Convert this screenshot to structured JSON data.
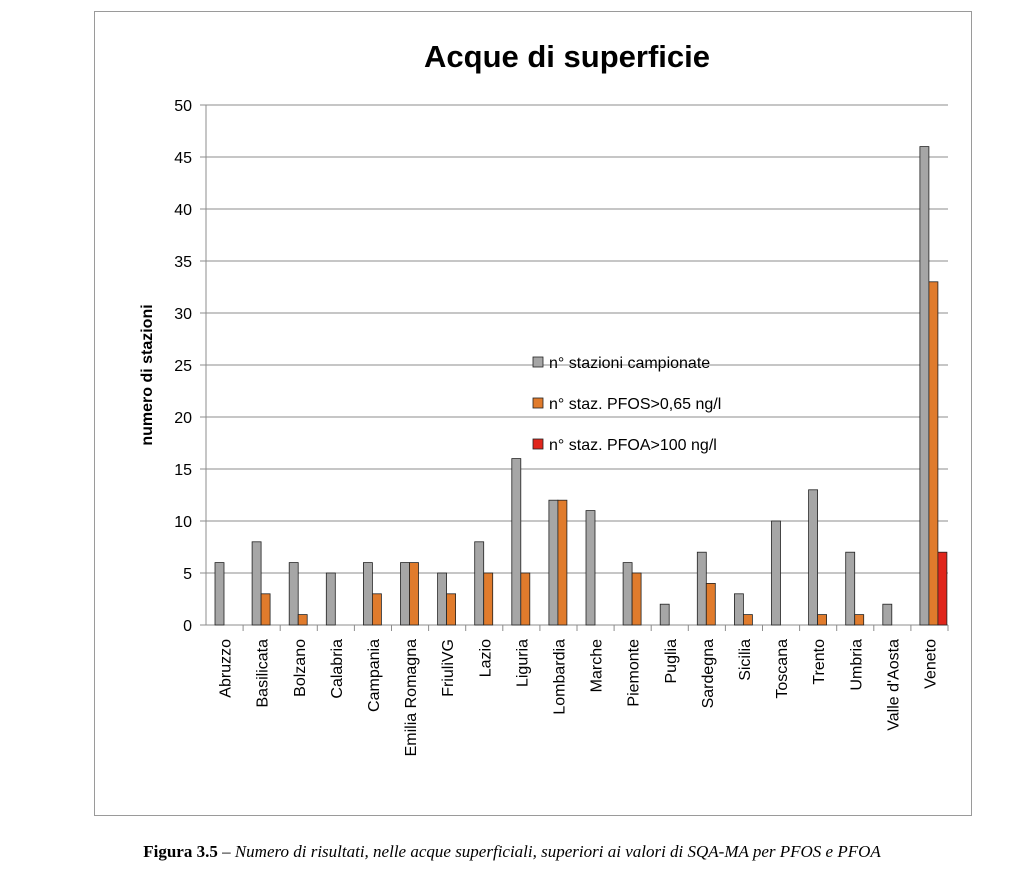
{
  "chart_data": {
    "type": "bar",
    "title": "Acque di superficie",
    "xlabel": "",
    "ylabel": "numero di stazioni",
    "ylim": [
      0,
      50
    ],
    "yticks": [
      0,
      5,
      10,
      15,
      20,
      25,
      30,
      35,
      40,
      45,
      50
    ],
    "grid": true,
    "legend_position": "center",
    "categories": [
      "Abruzzo",
      "Basilicata",
      "Bolzano",
      "Calabria",
      "Campania",
      "Emilia Romagna",
      "FriuliVG",
      "Lazio",
      "Liguria",
      "Lombardia",
      "Marche",
      "Piemonte",
      "Puglia",
      "Sardegna",
      "Sicilia",
      "Toscana",
      "Trento",
      "Umbria",
      "Valle d'Aosta",
      "Veneto"
    ],
    "series": [
      {
        "name": "n° stazioni campionate",
        "color": "#a6a6a6",
        "values": [
          6,
          8,
          6,
          5,
          6,
          6,
          5,
          8,
          16,
          12,
          11,
          6,
          2,
          7,
          3,
          10,
          13,
          7,
          2,
          46
        ]
      },
      {
        "name": "n° staz. PFOS>0,65 ng/l",
        "color": "#e07b2c",
        "values": [
          0,
          3,
          1,
          0,
          3,
          6,
          3,
          5,
          5,
          12,
          0,
          5,
          0,
          4,
          1,
          0,
          1,
          1,
          0,
          33
        ]
      },
      {
        "name": "n° staz. PFOA>100 ng/l",
        "color": "#e0251b",
        "values": [
          0,
          0,
          0,
          0,
          0,
          0,
          0,
          0,
          0,
          0,
          0,
          0,
          0,
          0,
          0,
          0,
          0,
          0,
          0,
          7
        ]
      }
    ]
  },
  "caption": {
    "label": "Figura 3.5",
    "text": " – Numero di risultati, nelle acque superficiali, superiori ai valori di SQA-MA per PFOS e PFOA"
  }
}
